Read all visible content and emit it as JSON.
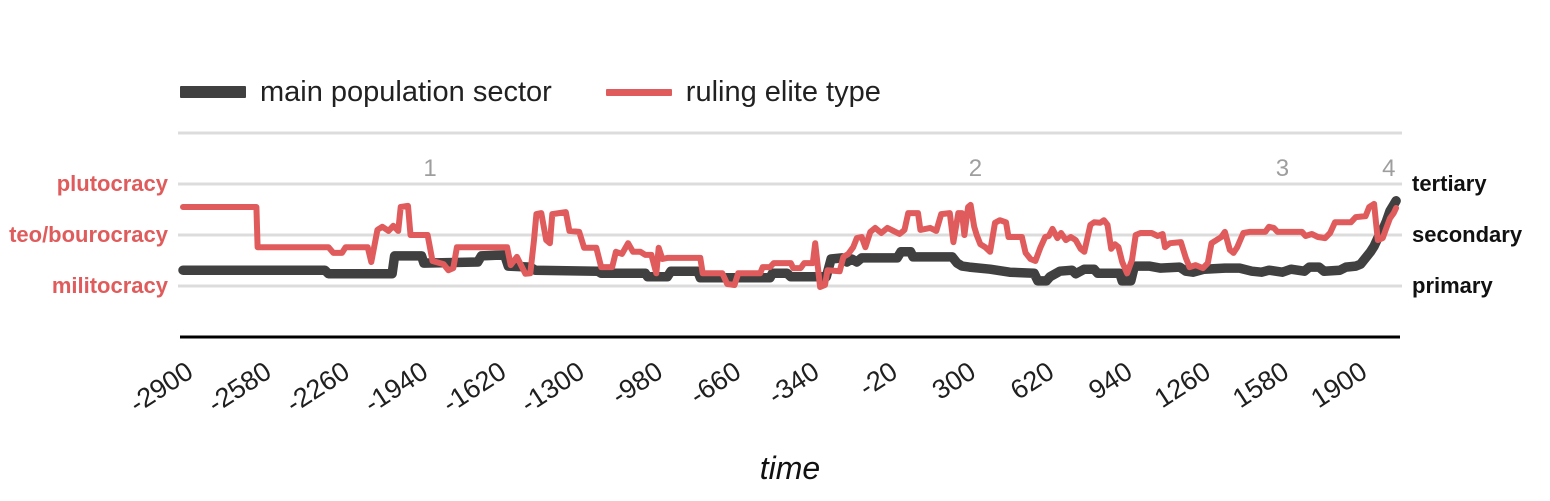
{
  "colors": {
    "background": "#ffffff",
    "gridline": "#dcdcdc",
    "axis_line": "#000000",
    "tick_label": "#1f1f1f",
    "annotation": "#9e9e9e",
    "left_label": "#e05c5c",
    "right_label": "#111111",
    "series_main": "#404040",
    "series_elite": "#e05c5c"
  },
  "chart_data": {
    "type": "line",
    "title": "",
    "xlabel": "time",
    "ylabel": "",
    "x_domain": [
      -2900,
      2065
    ],
    "y_domain": [
      0,
      4
    ],
    "grid": true,
    "legend_position": "top",
    "x_ticks": [
      -2900,
      -2580,
      -2260,
      -1940,
      -1620,
      -1300,
      -980,
      -660,
      -340,
      -20,
      300,
      620,
      940,
      1260,
      1580,
      1900
    ],
    "gridline_levels": [
      1,
      2,
      3,
      4
    ],
    "y_axis_left": {
      "color": "#e05c5c",
      "labels": [
        {
          "text": "plutocracy",
          "level": 3
        },
        {
          "text": "teo/bourocracy",
          "level": 2
        },
        {
          "text": "militocracy",
          "level": 1
        }
      ]
    },
    "y_axis_right": {
      "color": "#111111",
      "labels": [
        {
          "text": "tertiary",
          "level": 3
        },
        {
          "text": "secondary",
          "level": 2
        },
        {
          "text": "primary",
          "level": 1
        }
      ]
    },
    "annotations": [
      {
        "text": "1",
        "t": -1890
      },
      {
        "text": "2",
        "t": 340
      },
      {
        "text": "3",
        "t": 1595
      },
      {
        "text": "4",
        "t": 2030
      }
    ],
    "series": [
      {
        "name": "main population sector",
        "color": "#404040",
        "width": 9.5,
        "swatch_height": 12,
        "points": [
          [
            -2900,
            1.31
          ],
          [
            -2320,
            1.31
          ],
          [
            -2305,
            1.24
          ],
          [
            -2045,
            1.24
          ],
          [
            -2035,
            1.59
          ],
          [
            -1925,
            1.59
          ],
          [
            -1915,
            1.45
          ],
          [
            -1695,
            1.47
          ],
          [
            -1680,
            1.59
          ],
          [
            -1585,
            1.61
          ],
          [
            -1570,
            1.39
          ],
          [
            -1480,
            1.37
          ],
          [
            -1460,
            1.31
          ],
          [
            -1205,
            1.29
          ],
          [
            -1190,
            1.25
          ],
          [
            -1010,
            1.25
          ],
          [
            -1000,
            1.18
          ],
          [
            -920,
            1.18
          ],
          [
            -905,
            1.29
          ],
          [
            -795,
            1.29
          ],
          [
            -785,
            1.16
          ],
          [
            -500,
            1.16
          ],
          [
            -490,
            1.25
          ],
          [
            -430,
            1.25
          ],
          [
            -415,
            1.18
          ],
          [
            -270,
            1.18
          ],
          [
            -250,
            1.53
          ],
          [
            -205,
            1.55
          ],
          [
            -185,
            1.47
          ],
          [
            -165,
            1.53
          ],
          [
            -145,
            1.47
          ],
          [
            -125,
            1.55
          ],
          [
            20,
            1.55
          ],
          [
            35,
            1.67
          ],
          [
            75,
            1.67
          ],
          [
            85,
            1.57
          ],
          [
            245,
            1.57
          ],
          [
            265,
            1.45
          ],
          [
            285,
            1.39
          ],
          [
            315,
            1.37
          ],
          [
            400,
            1.33
          ],
          [
            480,
            1.27
          ],
          [
            580,
            1.25
          ],
          [
            595,
            1.1
          ],
          [
            630,
            1.1
          ],
          [
            645,
            1.18
          ],
          [
            685,
            1.29
          ],
          [
            735,
            1.31
          ],
          [
            750,
            1.24
          ],
          [
            785,
            1.33
          ],
          [
            825,
            1.33
          ],
          [
            840,
            1.25
          ],
          [
            930,
            1.25
          ],
          [
            940,
            1.1
          ],
          [
            975,
            1.1
          ],
          [
            990,
            1.39
          ],
          [
            1050,
            1.39
          ],
          [
            1095,
            1.35
          ],
          [
            1175,
            1.37
          ],
          [
            1200,
            1.29
          ],
          [
            1230,
            1.27
          ],
          [
            1275,
            1.33
          ],
          [
            1360,
            1.35
          ],
          [
            1420,
            1.35
          ],
          [
            1470,
            1.29
          ],
          [
            1510,
            1.27
          ],
          [
            1540,
            1.31
          ],
          [
            1595,
            1.27
          ],
          [
            1630,
            1.33
          ],
          [
            1685,
            1.29
          ],
          [
            1705,
            1.37
          ],
          [
            1745,
            1.37
          ],
          [
            1765,
            1.29
          ],
          [
            1830,
            1.31
          ],
          [
            1855,
            1.37
          ],
          [
            1895,
            1.39
          ],
          [
            1915,
            1.43
          ],
          [
            1935,
            1.55
          ],
          [
            1955,
            1.67
          ],
          [
            1970,
            1.78
          ],
          [
            1985,
            1.94
          ],
          [
            2005,
            2.1
          ],
          [
            2020,
            2.27
          ],
          [
            2035,
            2.47
          ],
          [
            2050,
            2.59
          ],
          [
            2060,
            2.67
          ]
        ]
      },
      {
        "name": "ruling elite type",
        "color": "#e05c5c",
        "width": 6,
        "swatch_height": 7,
        "points": [
          [
            -2900,
            2.55
          ],
          [
            -2600,
            2.55
          ],
          [
            -2595,
            1.76
          ],
          [
            -2305,
            1.76
          ],
          [
            -2285,
            1.65
          ],
          [
            -2250,
            1.65
          ],
          [
            -2235,
            1.76
          ],
          [
            -2145,
            1.76
          ],
          [
            -2130,
            1.47
          ],
          [
            -2105,
            2.1
          ],
          [
            -2085,
            2.16
          ],
          [
            -2060,
            2.08
          ],
          [
            -2040,
            2.18
          ],
          [
            -2020,
            2.08
          ],
          [
            -2010,
            2.55
          ],
          [
            -1980,
            2.57
          ],
          [
            -1970,
            2.0
          ],
          [
            -1900,
            2.0
          ],
          [
            -1880,
            1.49
          ],
          [
            -1835,
            1.43
          ],
          [
            -1815,
            1.31
          ],
          [
            -1795,
            1.35
          ],
          [
            -1780,
            1.76
          ],
          [
            -1575,
            1.76
          ],
          [
            -1560,
            1.41
          ],
          [
            -1535,
            1.57
          ],
          [
            -1500,
            1.24
          ],
          [
            -1480,
            1.25
          ],
          [
            -1465,
            1.9
          ],
          [
            -1455,
            2.41
          ],
          [
            -1435,
            2.43
          ],
          [
            -1415,
            1.9
          ],
          [
            -1400,
            1.84
          ],
          [
            -1390,
            2.41
          ],
          [
            -1335,
            2.45
          ],
          [
            -1320,
            2.08
          ],
          [
            -1280,
            2.06
          ],
          [
            -1260,
            1.75
          ],
          [
            -1210,
            1.75
          ],
          [
            -1190,
            1.37
          ],
          [
            -1145,
            1.37
          ],
          [
            -1130,
            1.67
          ],
          [
            -1105,
            1.63
          ],
          [
            -1080,
            1.84
          ],
          [
            -1060,
            1.67
          ],
          [
            -1030,
            1.67
          ],
          [
            -1010,
            1.61
          ],
          [
            -985,
            1.61
          ],
          [
            -965,
            1.25
          ],
          [
            -955,
            1.75
          ],
          [
            -940,
            1.53
          ],
          [
            -920,
            1.55
          ],
          [
            -785,
            1.55
          ],
          [
            -775,
            1.25
          ],
          [
            -695,
            1.25
          ],
          [
            -675,
            1.04
          ],
          [
            -645,
            1.02
          ],
          [
            -630,
            1.25
          ],
          [
            -540,
            1.25
          ],
          [
            -530,
            1.37
          ],
          [
            -500,
            1.37
          ],
          [
            -485,
            1.45
          ],
          [
            -415,
            1.45
          ],
          [
            -405,
            1.35
          ],
          [
            -375,
            1.35
          ],
          [
            -360,
            1.45
          ],
          [
            -325,
            1.45
          ],
          [
            -315,
            1.84
          ],
          [
            -295,
            0.98
          ],
          [
            -275,
            1.02
          ],
          [
            -265,
            1.31
          ],
          [
            -215,
            1.29
          ],
          [
            -200,
            1.57
          ],
          [
            -180,
            1.63
          ],
          [
            -160,
            1.76
          ],
          [
            -145,
            1.94
          ],
          [
            -125,
            1.96
          ],
          [
            -110,
            1.76
          ],
          [
            -90,
            2.06
          ],
          [
            -70,
            2.14
          ],
          [
            -45,
            2.04
          ],
          [
            -20,
            2.14
          ],
          [
            5,
            2.08
          ],
          [
            30,
            2.02
          ],
          [
            50,
            2.1
          ],
          [
            65,
            2.43
          ],
          [
            105,
            2.43
          ],
          [
            115,
            2.1
          ],
          [
            155,
            2.14
          ],
          [
            180,
            2.08
          ],
          [
            200,
            2.41
          ],
          [
            235,
            2.43
          ],
          [
            250,
            1.86
          ],
          [
            270,
            2.43
          ],
          [
            285,
            2.43
          ],
          [
            295,
            2.0
          ],
          [
            310,
            2.55
          ],
          [
            320,
            2.59
          ],
          [
            335,
            2.16
          ],
          [
            345,
            2.0
          ],
          [
            360,
            1.82
          ],
          [
            380,
            1.76
          ],
          [
            400,
            1.67
          ],
          [
            420,
            2.24
          ],
          [
            440,
            2.29
          ],
          [
            465,
            2.25
          ],
          [
            475,
            1.96
          ],
          [
            530,
            1.96
          ],
          [
            545,
            1.65
          ],
          [
            565,
            1.53
          ],
          [
            585,
            1.49
          ],
          [
            605,
            1.75
          ],
          [
            625,
            1.96
          ],
          [
            640,
            1.98
          ],
          [
            655,
            2.12
          ],
          [
            675,
            1.94
          ],
          [
            690,
            2.04
          ],
          [
            710,
            1.9
          ],
          [
            730,
            1.96
          ],
          [
            750,
            1.9
          ],
          [
            770,
            1.73
          ],
          [
            785,
            1.67
          ],
          [
            810,
            2.2
          ],
          [
            825,
            2.25
          ],
          [
            850,
            2.24
          ],
          [
            865,
            2.29
          ],
          [
            880,
            2.2
          ],
          [
            895,
            1.73
          ],
          [
            910,
            1.82
          ],
          [
            925,
            1.76
          ],
          [
            940,
            1.47
          ],
          [
            960,
            1.25
          ],
          [
            980,
            1.51
          ],
          [
            995,
            2.0
          ],
          [
            1015,
            2.04
          ],
          [
            1060,
            2.04
          ],
          [
            1085,
            1.98
          ],
          [
            1105,
            2.02
          ],
          [
            1115,
            1.76
          ],
          [
            1135,
            1.84
          ],
          [
            1180,
            1.86
          ],
          [
            1200,
            1.55
          ],
          [
            1215,
            1.37
          ],
          [
            1240,
            1.41
          ],
          [
            1270,
            1.35
          ],
          [
            1290,
            1.45
          ],
          [
            1305,
            1.84
          ],
          [
            1325,
            1.9
          ],
          [
            1345,
            1.96
          ],
          [
            1360,
            2.06
          ],
          [
            1380,
            1.71
          ],
          [
            1395,
            1.65
          ],
          [
            1410,
            1.76
          ],
          [
            1435,
            2.04
          ],
          [
            1460,
            2.06
          ],
          [
            1525,
            2.06
          ],
          [
            1540,
            2.16
          ],
          [
            1560,
            2.14
          ],
          [
            1575,
            2.06
          ],
          [
            1675,
            2.06
          ],
          [
            1690,
            1.98
          ],
          [
            1715,
            2.02
          ],
          [
            1740,
            1.96
          ],
          [
            1770,
            1.94
          ],
          [
            1790,
            2.04
          ],
          [
            1810,
            2.25
          ],
          [
            1875,
            2.25
          ],
          [
            1895,
            2.35
          ],
          [
            1935,
            2.37
          ],
          [
            1950,
            2.55
          ],
          [
            1970,
            2.61
          ],
          [
            1985,
            1.9
          ],
          [
            2005,
            1.94
          ],
          [
            2020,
            2.14
          ],
          [
            2035,
            2.33
          ],
          [
            2050,
            2.43
          ],
          [
            2060,
            2.53
          ]
        ]
      }
    ]
  }
}
